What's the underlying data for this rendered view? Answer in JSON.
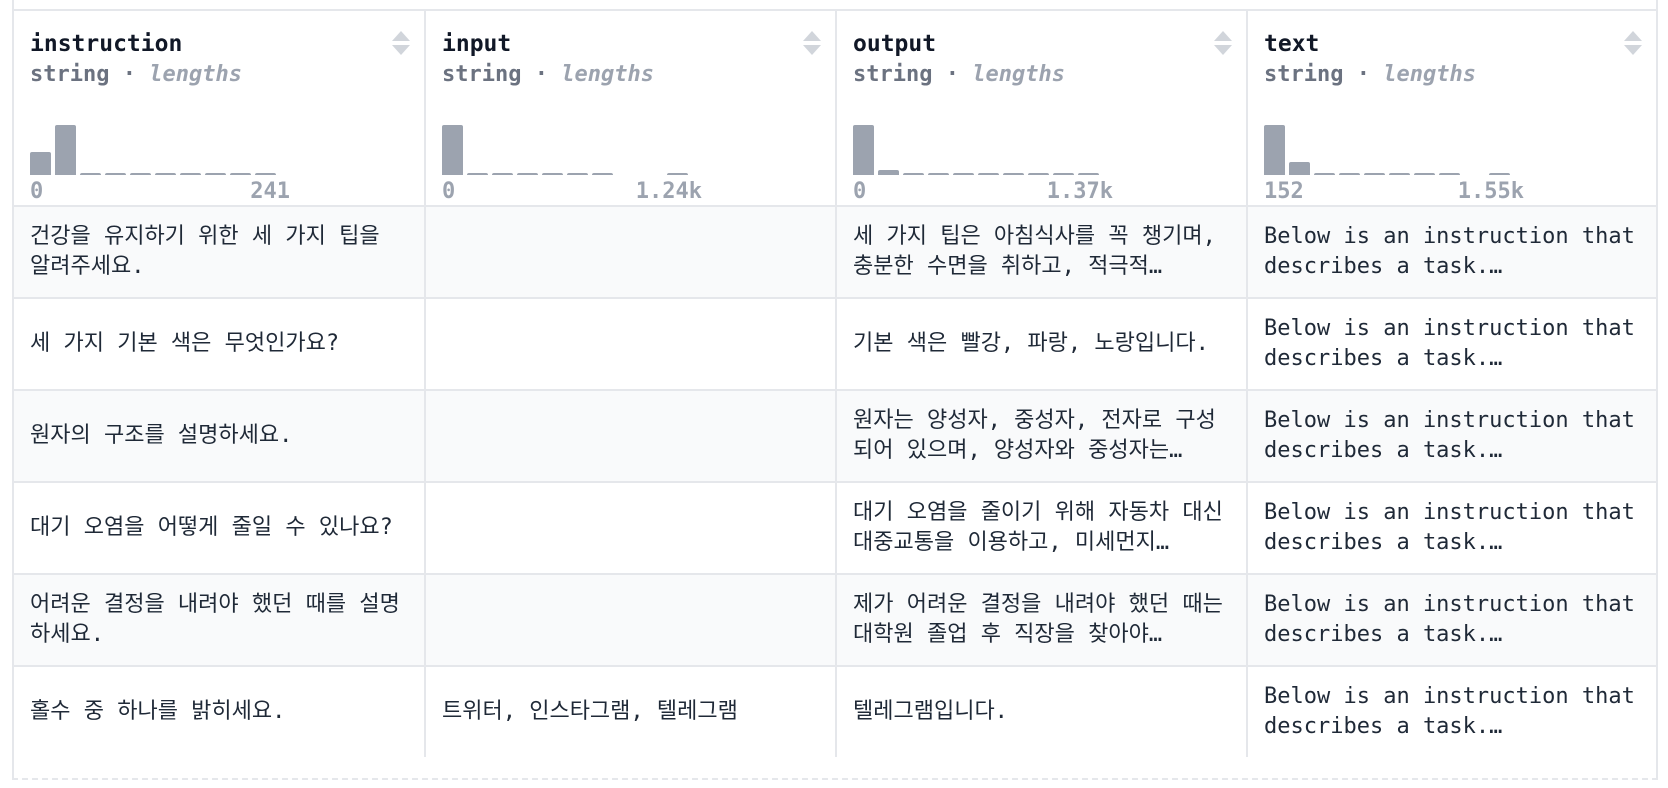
{
  "columns": [
    {
      "name": "instruction",
      "type": "string",
      "stat": "lengths",
      "min": "0",
      "max": "241",
      "hist": [
        0.45,
        1.0,
        0.04,
        0.03,
        0.03,
        0.03,
        0.03,
        0.03,
        0.03,
        0.03
      ]
    },
    {
      "name": "input",
      "type": "string",
      "stat": "lengths",
      "min": "0",
      "max": "1.24k",
      "hist": [
        1.0,
        0.03,
        0.03,
        0.03,
        0.03,
        0.03,
        0.03,
        0.0,
        0.0,
        0.03
      ]
    },
    {
      "name": "output",
      "type": "string",
      "stat": "lengths",
      "min": "0",
      "max": "1.37k",
      "hist": [
        1.0,
        0.1,
        0.03,
        0.03,
        0.03,
        0.03,
        0.03,
        0.03,
        0.03,
        0.03
      ]
    },
    {
      "name": "text",
      "type": "string",
      "stat": "lengths",
      "min": "152",
      "max": "1.55k",
      "hist": [
        1.0,
        0.25,
        0.04,
        0.03,
        0.03,
        0.03,
        0.03,
        0.03,
        0.0,
        0.03
      ]
    }
  ],
  "rows": [
    {
      "instruction": "건강을 유지하기 위한 세 가지 팁을 알려주세요.",
      "input": "",
      "output": "세 가지 팁은 아침식사를 꼭 챙기며, 충분한 수면을 취하고, 적극적…",
      "text": "Below is an instruction that describes a task.…"
    },
    {
      "instruction": "세 가지 기본 색은 무엇인가요?",
      "input": "",
      "output": "기본 색은 빨강, 파랑, 노랑입니다.",
      "text": "Below is an instruction that describes a task.…"
    },
    {
      "instruction": "원자의 구조를 설명하세요.",
      "input": "",
      "output": "원자는 양성자, 중성자, 전자로 구성되어 있으며, 양성자와 중성자는…",
      "text": "Below is an instruction that describes a task.…"
    },
    {
      "instruction": "대기 오염을 어떻게 줄일 수 있나요?",
      "input": "",
      "output": "대기 오염을 줄이기 위해 자동차 대신 대중교통을 이용하고, 미세먼지…",
      "text": "Below is an instruction that describes a task.…"
    },
    {
      "instruction": "어려운 결정을 내려야 했던 때를 설명하세요.",
      "input": "",
      "output": "제가 어려운 결정을 내려야 했던 때는 대학원 졸업 후 직장을 찾아야…",
      "text": "Below is an instruction that describes a task.…"
    },
    {
      "instruction": "홀수 중 하나를 밝히세요.",
      "input": "트위터, 인스타그램, 텔레그램",
      "output": "텔레그램입니다.",
      "text": "Below is an instruction that describes a task.…"
    }
  ]
}
